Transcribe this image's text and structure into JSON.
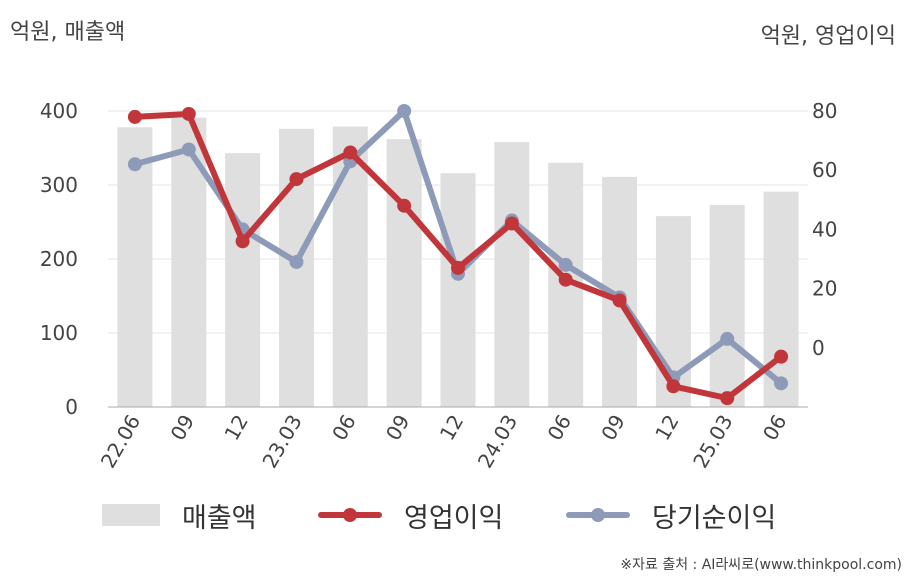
{
  "units": {
    "left": "억원, 매출액",
    "right": "억원, 영업이익"
  },
  "source": "※자료 출처 : AI라씨로(www.thinkpool.com)",
  "chart_data": {
    "type": "bar+line",
    "categories": [
      "22.06",
      "09",
      "12",
      "23.03",
      "06",
      "09",
      "12",
      "24.03",
      "06",
      "09",
      "12",
      "25.03",
      "06"
    ],
    "left_axis": {
      "ylim": [
        0,
        400
      ],
      "ticks": [
        0,
        100,
        200,
        300,
        400
      ]
    },
    "right_axis": {
      "ylim": [
        -20,
        80
      ],
      "ticks": [
        0,
        20,
        40,
        60,
        80
      ]
    },
    "series": [
      {
        "name": "매출액",
        "kind": "bar",
        "axis": "left",
        "color": "#dfdfdf",
        "values": [
          378,
          391,
          343,
          376,
          379,
          362,
          316,
          358,
          330,
          311,
          258,
          273,
          291
        ]
      },
      {
        "name": "영업이익",
        "kind": "line",
        "axis": "right",
        "color": "#c0363a",
        "values": [
          78,
          79,
          36,
          57,
          66,
          48,
          27,
          42,
          23,
          16,
          -13,
          -17,
          -3
        ]
      },
      {
        "name": "당기순이익",
        "kind": "line",
        "axis": "right",
        "color": "#8e9bb8",
        "values": [
          62,
          67,
          40,
          29,
          63,
          80,
          25,
          43,
          28,
          17,
          -10,
          3,
          -12
        ]
      }
    ],
    "grid": true,
    "legend_position": "bottom"
  }
}
